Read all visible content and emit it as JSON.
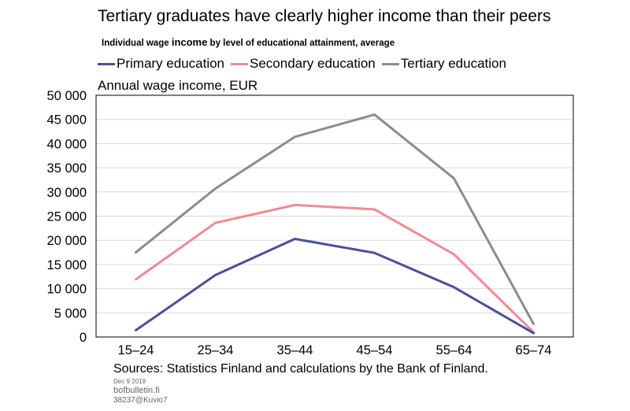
{
  "title": "Tertiary graduates have clearly higher income than their peers",
  "subtitle": {
    "before": "Individual wage ",
    "emphasis": "income",
    "after": " by level of educational attainment, average"
  },
  "footer": {
    "source": "Sources: Statistics Finland and calculations by the Bank of Finland.",
    "date": "Dec 9 2019",
    "site": "bofbulletin.fi",
    "figure_id": "38237@Kuvio7"
  },
  "chart_data": {
    "type": "line",
    "title": "Tertiary graduates have clearly higher income than their peers",
    "ylabel": "Annual wage income, EUR",
    "xlabel": "",
    "categories": [
      "15–24",
      "25–34",
      "35–44",
      "45–54",
      "55–64",
      "65–74"
    ],
    "ylim": [
      0,
      50000
    ],
    "yticks": [
      0,
      5000,
      10000,
      15000,
      20000,
      25000,
      30000,
      35000,
      40000,
      45000,
      50000
    ],
    "ytick_labels": [
      "0",
      "5 000",
      "10 000",
      "15 000",
      "20 000",
      "25 000",
      "30 000",
      "35 000",
      "40 000",
      "45 000",
      "50 000"
    ],
    "grid": true,
    "legend_position": "top",
    "series": [
      {
        "name": "Primary education",
        "color": "#4a4f9c",
        "values": [
          1400,
          12800,
          20300,
          17400,
          10300,
          800
        ]
      },
      {
        "name": "Secondary education",
        "color": "#f08a93",
        "values": [
          11900,
          23600,
          27300,
          26400,
          17100,
          1000
        ]
      },
      {
        "name": "Tertiary education",
        "color": "#8c8c8c",
        "values": [
          17500,
          30700,
          41400,
          46000,
          32800,
          2700
        ]
      }
    ]
  }
}
